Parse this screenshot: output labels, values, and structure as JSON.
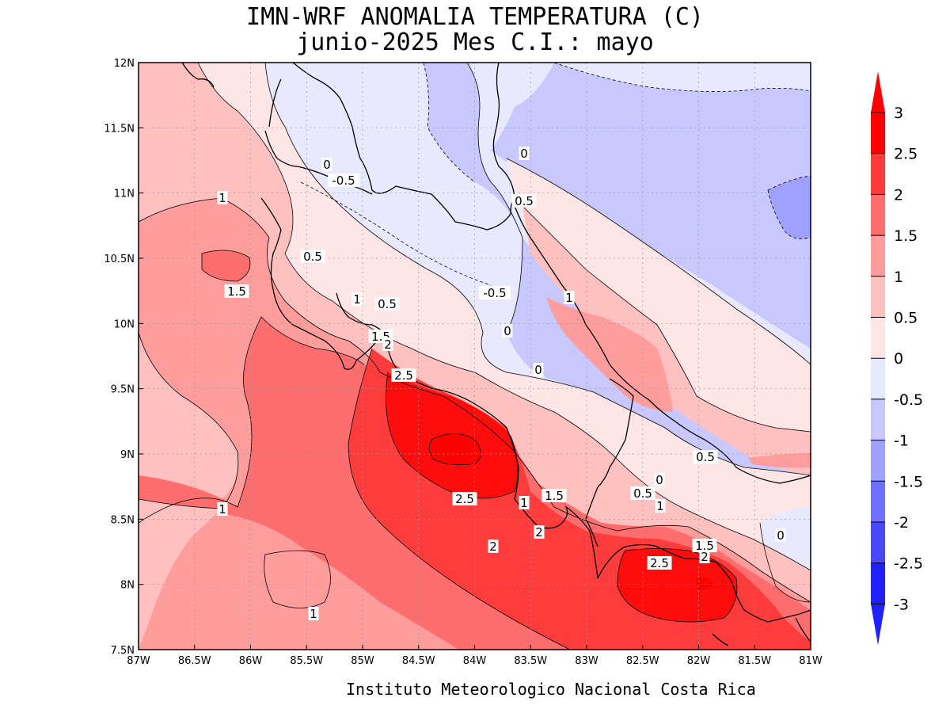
{
  "title": {
    "line1": "IMN-WRF  ANOMALIA TEMPERATURA (C)",
    "line2": "junio-2025 Mes C.I.: mayo"
  },
  "credit": "Instituto Meteorologico Nacional Costa Rica",
  "axes": {
    "x_ticks": [
      "87W",
      "86.5W",
      "86W",
      "85.5W",
      "85W",
      "84.5W",
      "84W",
      "83.5W",
      "83W",
      "82.5W",
      "82W",
      "81.5W",
      "81W"
    ],
    "y_ticks": [
      "12N",
      "11.5N",
      "11N",
      "10.5N",
      "10N",
      "9.5N",
      "9N",
      "8.5N",
      "8N",
      "7.5N"
    ],
    "lon_range": [
      -87,
      -81
    ],
    "lat_range": [
      7.5,
      12
    ],
    "grid": true
  },
  "colorbar": {
    "labels": [
      "3",
      "2.5",
      "2",
      "1.5",
      "1",
      "0.5",
      "0",
      "-0.5",
      "-1",
      "-1.5",
      "-2",
      "-2.5",
      "-3"
    ],
    "colors": [
      "#ff0000",
      "#ff3c3c",
      "#ff6e6e",
      "#ff9c9c",
      "#ffc0c0",
      "#ffe6e6",
      "#e8e8ff",
      "#c8c8ff",
      "#a0a0ff",
      "#7070ff",
      "#4848ff",
      "#2020ff"
    ]
  },
  "contour_labels": [
    {
      "text": "0"
    },
    {
      "text": "-0.5"
    },
    {
      "text": "1"
    },
    {
      "text": "0.5"
    },
    {
      "text": "1.5"
    },
    {
      "text": "1"
    },
    {
      "text": "0.5"
    },
    {
      "text": "1.5"
    },
    {
      "text": "2"
    },
    {
      "text": "2.5"
    },
    {
      "text": "0"
    },
    {
      "text": "0.5"
    },
    {
      "text": "-0.5"
    },
    {
      "text": "0"
    },
    {
      "text": "1"
    },
    {
      "text": "0"
    },
    {
      "text": "2.5"
    },
    {
      "text": "1"
    },
    {
      "text": "1.5"
    },
    {
      "text": "2"
    },
    {
      "text": "2"
    },
    {
      "text": "1"
    },
    {
      "text": "0.5"
    },
    {
      "text": "0"
    },
    {
      "text": "0.5"
    },
    {
      "text": "1"
    },
    {
      "text": "1.5"
    },
    {
      "text": "2"
    },
    {
      "text": "2.5"
    },
    {
      "text": "0"
    },
    {
      "text": "1"
    }
  ]
}
